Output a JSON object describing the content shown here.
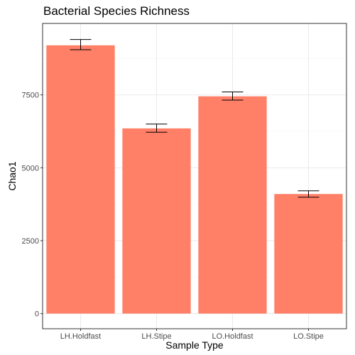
{
  "chart_data": {
    "type": "bar",
    "title": "Bacterial Species Richness",
    "xlabel": "Sample Type",
    "ylabel": "Chao1",
    "categories": [
      "LH.Holdfast",
      "LH.Stipe",
      "LO.Holdfast",
      "LO.Stipe"
    ],
    "values": [
      9200,
      6350,
      7450,
      4100
    ],
    "error_bars": [
      {
        "low": 9050,
        "high": 9400
      },
      {
        "low": 6220,
        "high": 6500
      },
      {
        "low": 7320,
        "high": 7600
      },
      {
        "low": 3990,
        "high": 4210
      }
    ],
    "ylim": [
      -520,
      9950
    ],
    "yticks": [
      0,
      2500,
      5000,
      7500
    ],
    "ytick_labels": [
      "0",
      "2500",
      "5000",
      "7500"
    ],
    "bar_color": "#FF7F67",
    "grid": true,
    "panel_border_color": "#333333",
    "grid_major_color": "#ebebeb",
    "grid_minor_color": "#f5f5f5"
  }
}
